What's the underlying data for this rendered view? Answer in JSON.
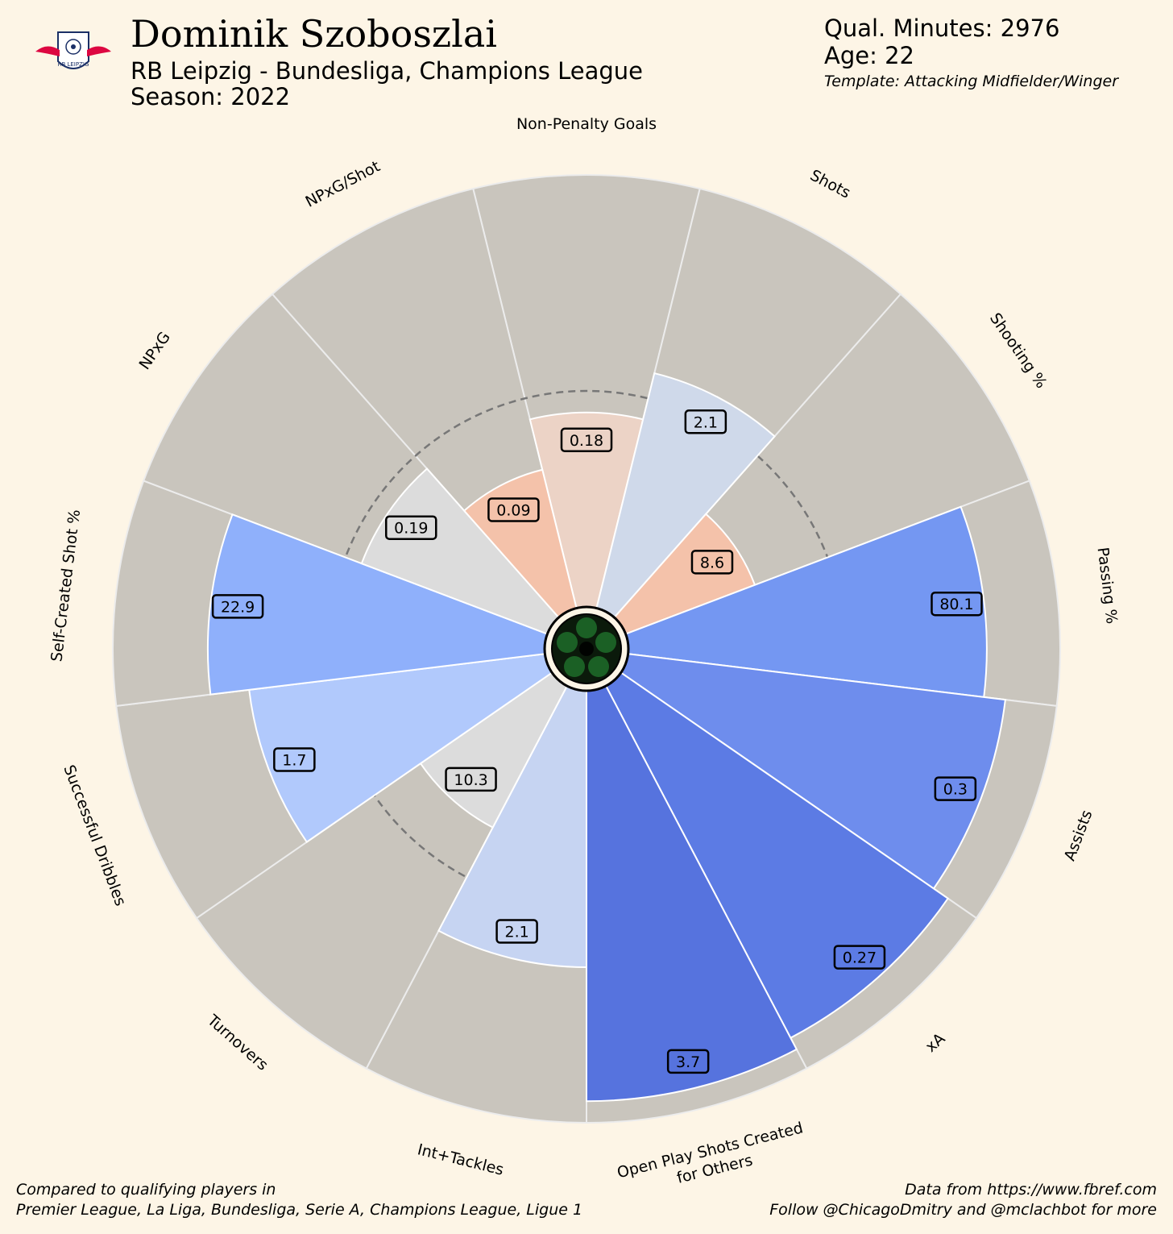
{
  "header": {
    "player_name": "Dominik Szoboszlai",
    "team_comp": "RB Leipzig - Bundesliga, Champions League",
    "season": "Season: 2022",
    "minutes": "Qual. Minutes: 2976",
    "age": "Age: 22",
    "template": "Template: Attacking Midfielder/Winger",
    "logo_text": "RB LEIPZIG"
  },
  "footer": {
    "compared_line1": "Compared to qualifying players in",
    "compared_line2": "Premier League, La Liga, Bundesliga, Serie A, Champions League, Ligue 1",
    "source_line1": "Data from https://www.fbref.com",
    "source_line2": "Follow @ChicagoDmitry and @mclachbot for more"
  },
  "chart_data": {
    "type": "polar-bar",
    "percentile_max": 100,
    "reference_ring_percentile": 50,
    "background_color": "#fdf5e6",
    "slice_background_color": "#c9c5bd",
    "categories": [
      {
        "label": "Non-Penalty Goals",
        "value": "0.18",
        "percentile": 45,
        "color": "#ecd3c6"
      },
      {
        "label": "Shots",
        "value": "2.1",
        "percentile": 56,
        "color": "#cfd9ea"
      },
      {
        "label": "Shooting %",
        "value": "8.6",
        "percentile": 32,
        "color": "#f4c2aa"
      },
      {
        "label": "Passing %",
        "value": "80.1",
        "percentile": 83,
        "color": "#7497f2"
      },
      {
        "label": "Assists",
        "value": "0.3",
        "percentile": 88,
        "color": "#6e8ded"
      },
      {
        "label": "xA",
        "value": "0.27",
        "percentile": 92,
        "color": "#5c7be4"
      },
      {
        "label": "Open Play Shots Created\nfor Others",
        "value": "3.7",
        "percentile": 95,
        "color": "#5673de"
      },
      {
        "label": "Int+Tackles",
        "value": "2.1",
        "percentile": 64,
        "color": "#c6d4f2"
      },
      {
        "label": "Turnovers",
        "value": "10.3",
        "percentile": 37,
        "color": "#dcdcdc"
      },
      {
        "label": "Successful Dribbles",
        "value": "1.7",
        "percentile": 69,
        "color": "#b1c9fc"
      },
      {
        "label": "Self-Created Shot %",
        "value": "22.9",
        "percentile": 78,
        "color": "#8fb0fb"
      },
      {
        "label": "NPxG",
        "value": "0.19",
        "percentile": 46,
        "color": "#dcdcdc"
      },
      {
        "label": "NPxG/Shot",
        "value": "0.09",
        "percentile": 33,
        "color": "#f4c2aa"
      }
    ]
  }
}
